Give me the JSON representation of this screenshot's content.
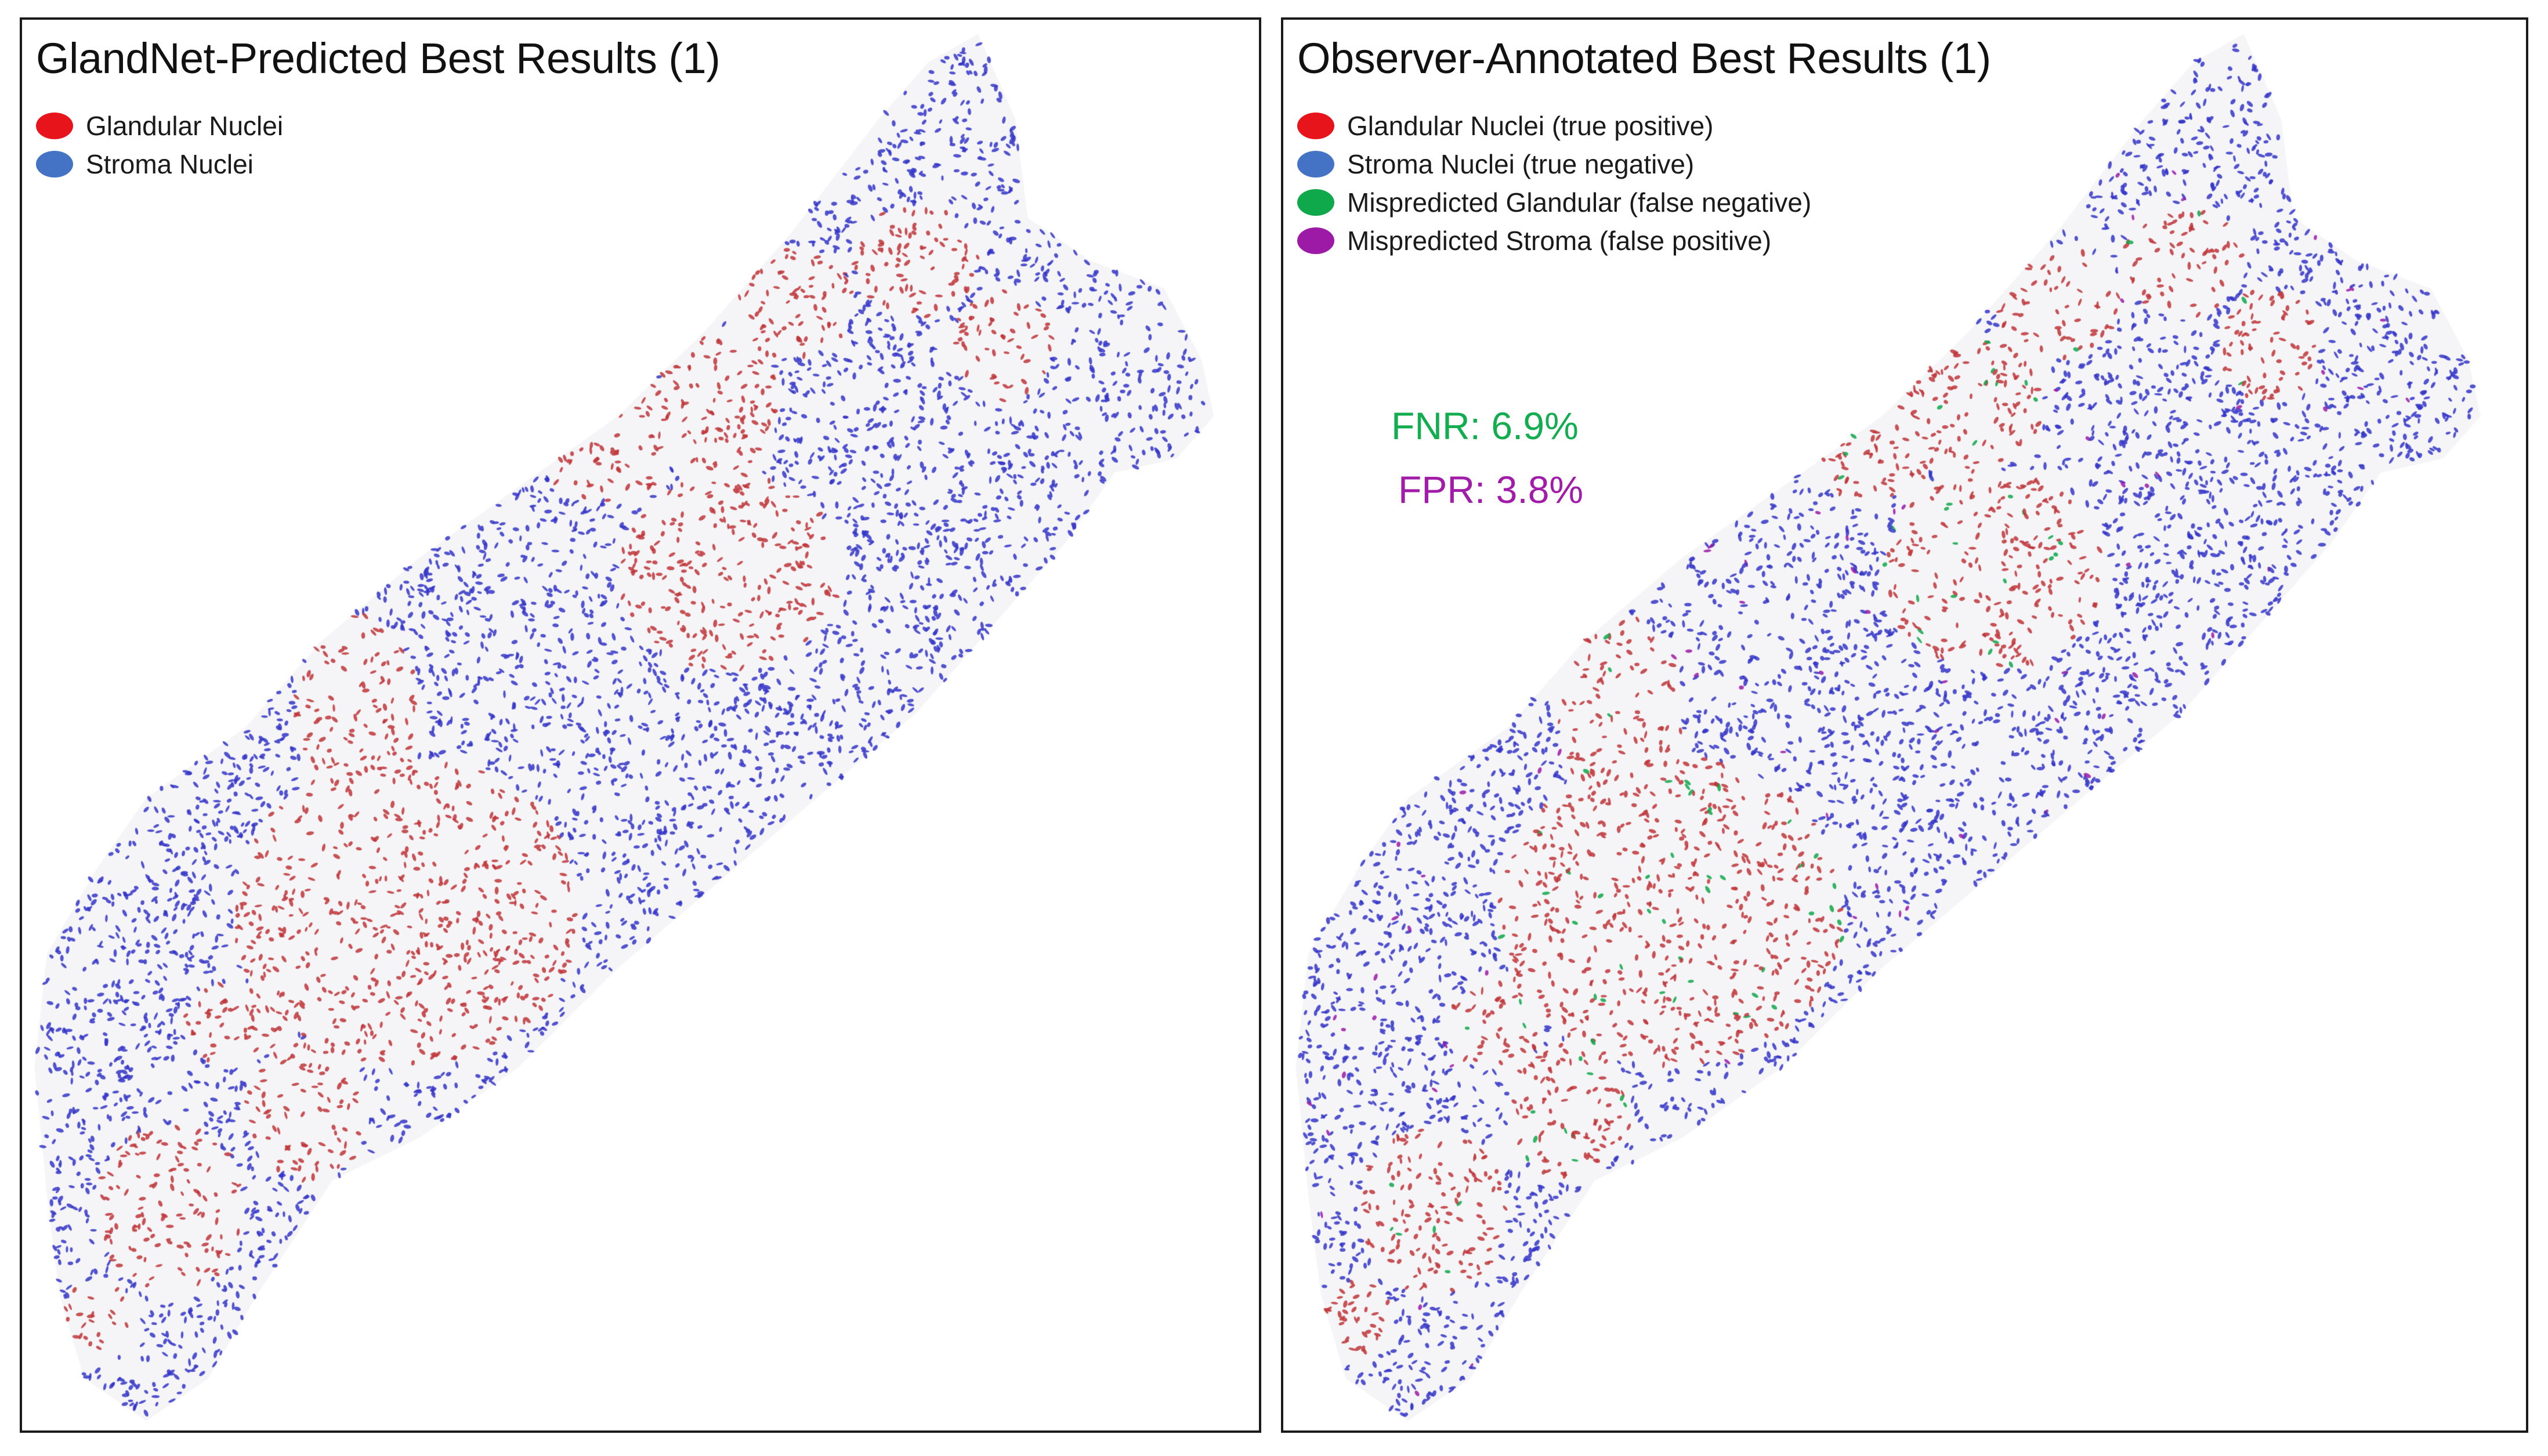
{
  "colors": {
    "glandular": "#e8141c",
    "stroma": "#4472c4",
    "false_negative": "#0fa84a",
    "false_positive": "#9c1aa6",
    "glandular_dots": "#c0363a",
    "stroma_dots": "#3536c8",
    "fnr_text": "#12ad4e",
    "fpr_text": "#a11ca8"
  },
  "left_panel": {
    "title": "GlandNet-Predicted Best Results (1)",
    "legend": [
      {
        "label": "Glandular Nuclei",
        "icon": "red-ellipse-icon"
      },
      {
        "label": "Stroma Nuclei",
        "icon": "blue-ellipse-icon"
      }
    ]
  },
  "right_panel": {
    "title": "Observer-Annotated Best Results (1)",
    "legend": [
      {
        "label": "Glandular Nuclei (true positive)",
        "icon": "red-ellipse-icon"
      },
      {
        "label": "Stroma Nuclei (true negative)",
        "icon": "blue-ellipse-icon"
      },
      {
        "label": "Mispredicted Glandular (false negative)",
        "icon": "green-ellipse-icon"
      },
      {
        "label": "Mispredicted Stroma (false positive)",
        "icon": "purple-ellipse-icon"
      }
    ],
    "metrics": {
      "fnr": "FNR: 6.9%",
      "fpr": "FPR: 3.8%"
    }
  }
}
